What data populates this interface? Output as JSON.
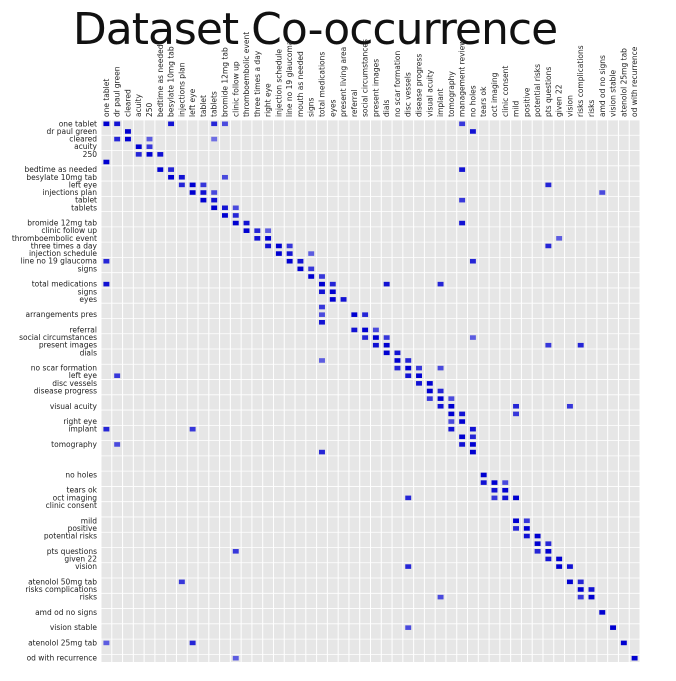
{
  "chart_data": {
    "type": "heatmap",
    "title": "Dataset Co-occurrence",
    "xlabel": "",
    "ylabel": "",
    "colors": {
      "background": "#e6e6e6",
      "low": "#b8b8f0",
      "high": "#0000d0",
      "grid": "#ffffff"
    },
    "row_labels": [
      "one tablet",
      "dr paul green",
      "cleared",
      "acuity",
      "250",
      "",
      "bedtime as needed",
      "besylate 10mg tab",
      "left eye",
      "injections plan",
      "tablet",
      "tablets",
      "",
      "bromide 12mg tab",
      "clinic follow up",
      "thromboembolic event",
      "three times a day",
      "injection schedule",
      "line no 19 glaucoma",
      "signs",
      "",
      "total medications",
      "signs",
      "eyes",
      "",
      "arrangements pres",
      "",
      "referral",
      "social circumstances",
      "present images",
      "dials",
      "",
      "no scar formation",
      "left eye",
      "disc vessels",
      "disease progress",
      "",
      "visual acuity",
      "",
      "right eye",
      "implant",
      "",
      "tomography",
      "",
      "",
      "",
      "no holes",
      "",
      "tears ok",
      "oct imaging",
      "clinic consent",
      "",
      "mild",
      "positive",
      "potential risks",
      "",
      "pts questions",
      "given 22",
      "vision",
      "",
      "atenolol 50mg tab",
      "risks complications",
      "risks",
      "",
      "amd od no signs",
      "",
      "vision stable",
      "",
      "atenolol 25mg tab",
      "",
      "od with recurrence"
    ],
    "col_labels": [
      "one tablet",
      "dr paul green",
      "cleared",
      "acuity",
      "250",
      "bedtime as needed",
      "besylate 10mg tab",
      "injections plan",
      "left eye",
      "tablet",
      "tablets",
      "bromide 12mg tab",
      "clinic follow up",
      "thromboembolic event",
      "three times a day",
      "right eye",
      "injection schedule",
      "line no 19 glaucoma",
      "mouth as needed",
      "signs",
      "total medications",
      "eyes",
      "present living area",
      "referral",
      "social circumstances",
      "present images",
      "dials",
      "no scar formation",
      "disc vessels",
      "disease progress",
      "visual acuity",
      "implant",
      "tomography",
      "management review",
      "no holes",
      "tears ok",
      "oct imaging",
      "clinic consent",
      "mild",
      "positive",
      "potential risks",
      "pts questions",
      "given 22",
      "vision",
      "risks complications",
      "risks",
      "amd od no signs",
      "vision stable",
      "atenolol 25mg tab",
      "od with recurrence"
    ],
    "cells": [
      [
        0,
        0,
        1
      ],
      [
        0,
        1,
        0.9
      ],
      [
        0,
        6,
        0.9
      ],
      [
        0,
        10,
        0.8
      ],
      [
        0,
        11,
        0.6
      ],
      [
        0,
        33,
        0.7
      ],
      [
        1,
        2,
        1
      ],
      [
        1,
        34,
        0.9
      ],
      [
        2,
        1,
        0.8
      ],
      [
        2,
        2,
        1
      ],
      [
        2,
        4,
        0.5
      ],
      [
        2,
        10,
        0.4
      ],
      [
        3,
        3,
        1
      ],
      [
        3,
        4,
        0.7
      ],
      [
        4,
        3,
        0.8
      ],
      [
        4,
        4,
        1
      ],
      [
        4,
        5,
        0.9
      ],
      [
        5,
        0,
        1
      ],
      [
        6,
        5,
        1
      ],
      [
        6,
        6,
        0.8
      ],
      [
        6,
        33,
        0.9
      ],
      [
        7,
        6,
        1
      ],
      [
        7,
        7,
        0.9
      ],
      [
        7,
        11,
        0.6
      ],
      [
        8,
        7,
        0.8
      ],
      [
        8,
        8,
        1
      ],
      [
        8,
        9,
        0.7
      ],
      [
        8,
        41,
        0.8
      ],
      [
        9,
        8,
        1
      ],
      [
        9,
        9,
        0.9
      ],
      [
        9,
        10,
        0.6
      ],
      [
        9,
        46,
        0.6
      ],
      [
        10,
        9,
        1
      ],
      [
        10,
        10,
        0.9
      ],
      [
        10,
        33,
        0.7
      ],
      [
        11,
        10,
        1
      ],
      [
        11,
        11,
        0.9
      ],
      [
        11,
        12,
        0.6
      ],
      [
        12,
        11,
        1
      ],
      [
        12,
        12,
        0.8
      ],
      [
        13,
        12,
        1
      ],
      [
        13,
        13,
        0.9
      ],
      [
        13,
        33,
        0.9
      ],
      [
        14,
        13,
        1
      ],
      [
        14,
        14,
        0.8
      ],
      [
        14,
        15,
        0.5
      ],
      [
        15,
        14,
        0.9
      ],
      [
        15,
        15,
        1
      ],
      [
        15,
        42,
        0.5
      ],
      [
        16,
        15,
        0.9
      ],
      [
        16,
        16,
        1
      ],
      [
        16,
        17,
        0.7
      ],
      [
        16,
        41,
        0.8
      ],
      [
        17,
        16,
        1
      ],
      [
        17,
        17,
        0.9
      ],
      [
        17,
        19,
        0.5
      ],
      [
        18,
        0,
        0.8
      ],
      [
        18,
        17,
        1
      ],
      [
        18,
        18,
        0.9
      ],
      [
        18,
        34,
        0.8
      ],
      [
        19,
        18,
        1
      ],
      [
        19,
        19,
        0.7
      ],
      [
        20,
        19,
        1
      ],
      [
        20,
        20,
        0.7
      ],
      [
        21,
        0,
        0.9
      ],
      [
        21,
        20,
        1
      ],
      [
        21,
        21,
        0.8
      ],
      [
        21,
        26,
        0.9
      ],
      [
        21,
        31,
        0.8
      ],
      [
        22,
        20,
        0.9
      ],
      [
        22,
        21,
        1
      ],
      [
        23,
        21,
        1
      ],
      [
        23,
        22,
        0.9
      ],
      [
        24,
        20,
        0.7
      ],
      [
        25,
        23,
        1
      ],
      [
        25,
        24,
        0.8
      ],
      [
        25,
        20,
        0.6
      ],
      [
        26,
        20,
        0.9
      ],
      [
        27,
        23,
        0.9
      ],
      [
        27,
        24,
        1
      ],
      [
        27,
        25,
        0.6
      ],
      [
        28,
        24,
        0.8
      ],
      [
        28,
        25,
        1
      ],
      [
        28,
        26,
        0.7
      ],
      [
        28,
        34,
        0.5
      ],
      [
        29,
        25,
        0.9
      ],
      [
        29,
        26,
        1
      ],
      [
        29,
        41,
        0.7
      ],
      [
        29,
        44,
        0.8
      ],
      [
        30,
        26,
        1
      ],
      [
        30,
        27,
        0.9
      ],
      [
        31,
        27,
        1
      ],
      [
        31,
        28,
        0.8
      ],
      [
        31,
        20,
        0.5
      ],
      [
        32,
        27,
        0.8
      ],
      [
        32,
        28,
        1
      ],
      [
        32,
        29,
        0.7
      ],
      [
        32,
        31,
        0.6
      ],
      [
        33,
        1,
        0.7
      ],
      [
        33,
        28,
        0.9
      ],
      [
        33,
        29,
        1
      ],
      [
        34,
        29,
        0.9
      ],
      [
        34,
        30,
        1
      ],
      [
        35,
        30,
        1
      ],
      [
        35,
        31,
        0.8
      ],
      [
        36,
        30,
        0.7
      ],
      [
        36,
        31,
        1
      ],
      [
        36,
        32,
        0.6
      ],
      [
        37,
        31,
        0.9
      ],
      [
        37,
        32,
        1
      ],
      [
        37,
        38,
        0.8
      ],
      [
        37,
        43,
        0.7
      ],
      [
        38,
        32,
        1
      ],
      [
        38,
        33,
        0.9
      ],
      [
        38,
        38,
        0.7
      ],
      [
        39,
        32,
        0.6
      ],
      [
        39,
        33,
        1
      ],
      [
        40,
        0,
        0.8
      ],
      [
        40,
        32,
        0.9
      ],
      [
        40,
        34,
        0.9
      ],
      [
        40,
        8,
        0.7
      ],
      [
        41,
        33,
        1
      ],
      [
        41,
        34,
        0.8
      ],
      [
        42,
        1,
        0.6
      ],
      [
        42,
        33,
        0.9
      ],
      [
        42,
        34,
        1
      ],
      [
        43,
        34,
        1
      ],
      [
        43,
        20,
        0.8
      ],
      [
        46,
        35,
        1
      ],
      [
        47,
        35,
        0.9
      ],
      [
        47,
        36,
        1
      ],
      [
        47,
        37,
        0.6
      ],
      [
        48,
        36,
        0.9
      ],
      [
        48,
        37,
        1
      ],
      [
        49,
        36,
        0.7
      ],
      [
        49,
        37,
        0.9
      ],
      [
        49,
        38,
        1
      ],
      [
        49,
        28,
        0.8
      ],
      [
        52,
        38,
        1
      ],
      [
        52,
        39,
        0.7
      ],
      [
        53,
        38,
        0.8
      ],
      [
        53,
        39,
        1
      ],
      [
        54,
        39,
        0.9
      ],
      [
        54,
        40,
        1
      ],
      [
        55,
        40,
        1
      ],
      [
        55,
        41,
        0.8
      ],
      [
        56,
        40,
        0.8
      ],
      [
        56,
        41,
        1
      ],
      [
        56,
        12,
        0.7
      ],
      [
        57,
        41,
        0.9
      ],
      [
        57,
        42,
        1
      ],
      [
        58,
        42,
        1
      ],
      [
        58,
        43,
        0.9
      ],
      [
        58,
        28,
        0.8
      ],
      [
        60,
        43,
        1
      ],
      [
        60,
        44,
        0.8
      ],
      [
        60,
        7,
        0.7
      ],
      [
        61,
        44,
        1
      ],
      [
        61,
        45,
        0.9
      ],
      [
        62,
        44,
        0.7
      ],
      [
        62,
        45,
        1
      ],
      [
        62,
        31,
        0.6
      ],
      [
        64,
        46,
        1
      ],
      [
        66,
        47,
        1
      ],
      [
        66,
        28,
        0.6
      ],
      [
        68,
        48,
        1
      ],
      [
        68,
        8,
        0.8
      ],
      [
        68,
        0,
        0.5
      ],
      [
        70,
        49,
        1
      ],
      [
        70,
        12,
        0.5
      ]
    ]
  }
}
